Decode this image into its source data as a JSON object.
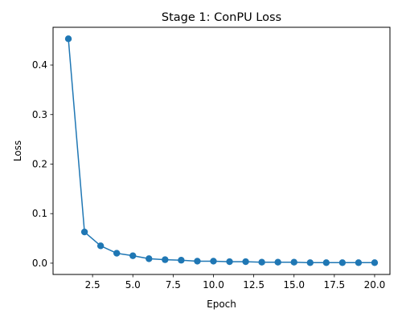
{
  "chart_data": {
    "type": "line",
    "title": "Stage 1: ConPU Loss",
    "xlabel": "Epoch",
    "ylabel": "Loss",
    "xlim": [
      0.05,
      20.95
    ],
    "ylim": [
      -0.0228,
      0.4762
    ],
    "xticks": [
      2.5,
      5.0,
      7.5,
      10.0,
      12.5,
      15.0,
      17.5,
      20.0
    ],
    "xtick_labels": [
      "2.5",
      "5.0",
      "7.5",
      "10.0",
      "12.5",
      "15.0",
      "17.5",
      "20.0"
    ],
    "yticks": [
      0.0,
      0.1,
      0.2,
      0.3,
      0.4
    ],
    "ytick_labels": [
      "0.0",
      "0.1",
      "0.2",
      "0.3",
      "0.4"
    ],
    "grid": false,
    "legend": "none",
    "series": [
      {
        "color": "#1f77b4",
        "marker": "circle",
        "x": [
          1,
          2,
          3,
          4,
          5,
          6,
          7,
          8,
          9,
          10,
          11,
          12,
          13,
          14,
          15,
          16,
          17,
          18,
          19,
          20
        ],
        "y": [
          0.453,
          0.063,
          0.035,
          0.02,
          0.015,
          0.009,
          0.007,
          0.006,
          0.004,
          0.004,
          0.003,
          0.003,
          0.002,
          0.002,
          0.002,
          0.001,
          0.001,
          0.001,
          0.001,
          0.001
        ]
      }
    ]
  }
}
